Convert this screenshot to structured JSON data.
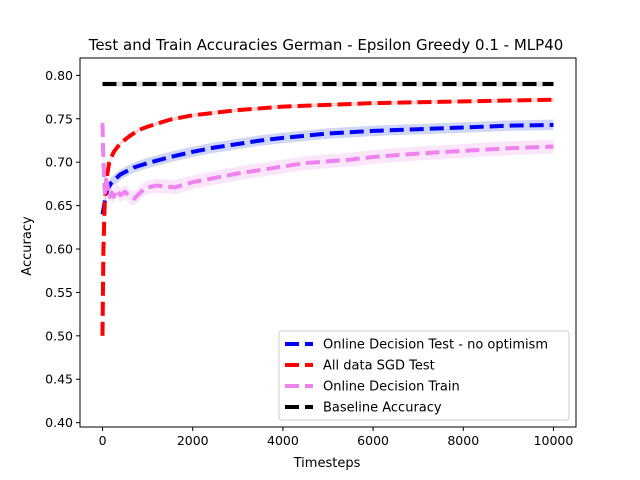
{
  "chart_data": {
    "type": "line",
    "title": "Test and Train Accuracies German - Epsilon Greedy 0.1 - MLP40",
    "xlabel": "Timesteps",
    "ylabel": "Accuracy",
    "xlim": [
      -500,
      10500
    ],
    "ylim": [
      0.395,
      0.82
    ],
    "xticks": [
      0,
      2000,
      4000,
      6000,
      8000,
      10000
    ],
    "yticks": [
      0.4,
      0.45,
      0.5,
      0.55,
      0.6,
      0.65,
      0.7,
      0.75,
      0.8
    ],
    "xtick_labels": [
      "0",
      "2000",
      "4000",
      "6000",
      "8000",
      "10000"
    ],
    "ytick_labels": [
      "0.40",
      "0.45",
      "0.50",
      "0.55",
      "0.60",
      "0.65",
      "0.70",
      "0.75",
      "0.80"
    ],
    "grid": false,
    "legend_position": "lower-right",
    "series": [
      {
        "name": "Online Decision Test - no optimism",
        "color": "#0000ff",
        "band_color": "#aab4f0",
        "x": [
          0,
          50,
          100,
          200,
          400,
          700,
          1000,
          1500,
          2000,
          2500,
          3000,
          3500,
          4000,
          5000,
          6000,
          7000,
          8000,
          9000,
          10000
        ],
        "y": [
          0.64,
          0.655,
          0.668,
          0.677,
          0.686,
          0.694,
          0.699,
          0.706,
          0.712,
          0.717,
          0.721,
          0.725,
          0.728,
          0.733,
          0.736,
          0.738,
          0.74,
          0.742,
          0.743
        ],
        "band": 0.006
      },
      {
        "name": "All data SGD Test",
        "color": "#ff0000",
        "band_color": "#ffb0b0",
        "x": [
          0,
          20,
          50,
          100,
          150,
          250,
          400,
          600,
          800,
          1000,
          1500,
          2000,
          2500,
          3000,
          4000,
          5000,
          6000,
          7000,
          8000,
          9000,
          10000
        ],
        "y": [
          0.5,
          0.6,
          0.655,
          0.685,
          0.7,
          0.712,
          0.722,
          0.73,
          0.737,
          0.741,
          0.749,
          0.754,
          0.757,
          0.76,
          0.764,
          0.766,
          0.768,
          0.769,
          0.77,
          0.771,
          0.772
        ],
        "band": 0.002
      },
      {
        "name": "Online Decision Train",
        "color": "#ee82ee",
        "band_color": "#f8d0f8",
        "x": [
          0,
          20,
          50,
          80,
          120,
          160,
          200,
          250,
          300,
          400,
          500,
          600,
          700,
          800,
          900,
          1000,
          1200,
          1400,
          1600,
          1800,
          2000,
          2500,
          3000,
          3500,
          4000,
          4500,
          5000,
          5500,
          6000,
          7000,
          8000,
          9000,
          10000
        ],
        "y": [
          0.745,
          0.7,
          0.665,
          0.68,
          0.67,
          0.66,
          0.665,
          0.66,
          0.668,
          0.662,
          0.666,
          0.66,
          0.658,
          0.663,
          0.668,
          0.671,
          0.673,
          0.672,
          0.671,
          0.674,
          0.677,
          0.682,
          0.687,
          0.691,
          0.695,
          0.699,
          0.701,
          0.703,
          0.706,
          0.71,
          0.713,
          0.716,
          0.718
        ],
        "band": 0.008
      },
      {
        "name": "Baseline Accuracy",
        "color": "#000000",
        "band_color": "#c8c8c8",
        "x": [
          0,
          10000
        ],
        "y": [
          0.79,
          0.79
        ],
        "band": 0.003
      }
    ]
  }
}
